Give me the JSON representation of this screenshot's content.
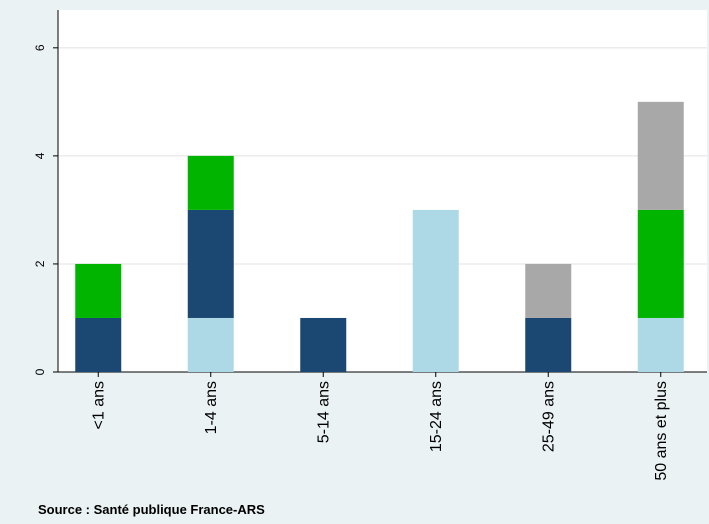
{
  "chart_data": {
    "type": "stacked_bar",
    "categories": [
      "<1 ans",
      "1-4 ans",
      "5-14 ans",
      "15-24 ans",
      "25-49 ans",
      "50 ans et plus"
    ],
    "series": [
      {
        "color": "#add8e6",
        "values": [
          0,
          1,
          0,
          3,
          0,
          1
        ]
      },
      {
        "color": "#1a4872",
        "values": [
          1,
          2,
          1,
          0,
          1,
          0
        ]
      },
      {
        "color": "#00b400",
        "values": [
          1,
          1,
          0,
          0,
          0,
          2
        ]
      },
      {
        "color": "#a8a8a8",
        "values": [
          0,
          0,
          0,
          0,
          1,
          2
        ]
      }
    ],
    "ylim": [
      0,
      6.7
    ],
    "yticks": [
      0,
      2,
      4,
      6
    ],
    "grid": true,
    "source": "Source : Santé publique France-ARS"
  }
}
